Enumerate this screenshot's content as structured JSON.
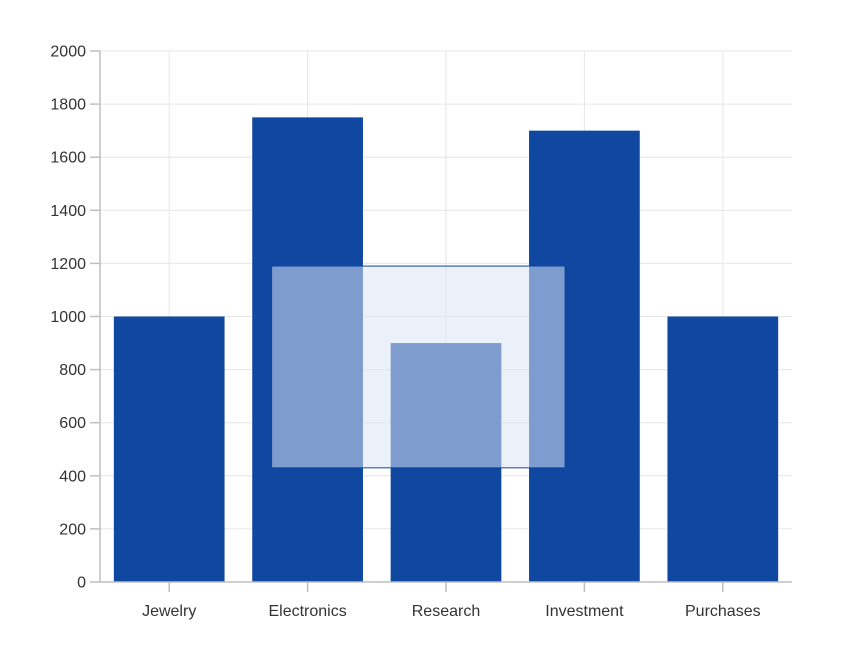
{
  "chart_data": {
    "type": "bar",
    "categories": [
      "Jewelry",
      "Electronics",
      "Research",
      "Investment",
      "Purchases"
    ],
    "values": [
      1000,
      1750,
      900,
      1700,
      1000
    ],
    "ylim": [
      0,
      2000
    ],
    "yticks": [
      0,
      200,
      400,
      600,
      800,
      1000,
      1200,
      1400,
      1600,
      1800,
      2000
    ],
    "grid": true,
    "legend": "none",
    "selection_range": {
      "from_category": "Electronics",
      "to_category": "Investment",
      "y_min": 430,
      "y_max": 1190
    },
    "colors": {
      "bar": "#0f47a1",
      "grid": "#e6e6e6",
      "axis": "#bfbfbf",
      "selection_fill": "#dbe3f4",
      "selection_stroke": "#0f47a1"
    }
  }
}
